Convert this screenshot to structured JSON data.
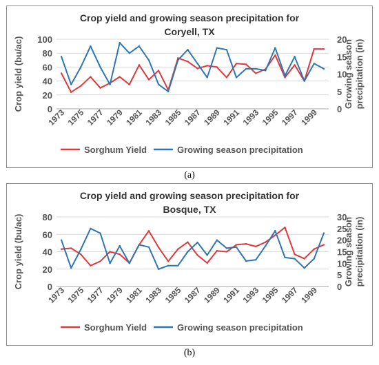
{
  "captions": [
    "(a)",
    "(b)"
  ],
  "chart_data": [
    {
      "type": "line",
      "title_lines": [
        "Crop yield and growing season precipitation for",
        "Coryell, TX"
      ],
      "ylabel": "Crop yield (bu/ac)",
      "y2label_lines": [
        "Growing season",
        "precipitation (in)"
      ],
      "ylim": [
        0,
        100
      ],
      "yticks": [
        0,
        20,
        40,
        60,
        80,
        100
      ],
      "y2lim": [
        0,
        20
      ],
      "y2ticks": [
        0,
        5,
        10,
        15,
        20
      ],
      "x": [
        1973,
        1974,
        1975,
        1976,
        1977,
        1978,
        1979,
        1980,
        1981,
        1982,
        1983,
        1984,
        1985,
        1986,
        1987,
        1988,
        1989,
        1990,
        1991,
        1992,
        1993,
        1994,
        1995,
        1996,
        1997,
        1998,
        1999,
        2000
      ],
      "xtick_labels": [
        "1973",
        "1975",
        "1977",
        "1979",
        "1981",
        "1983",
        "1985",
        "1987",
        "1989",
        "1991",
        "1993",
        "1995",
        "1997",
        "1999"
      ],
      "grid": true,
      "legend_position": "bottom",
      "series": [
        {
          "name": "Sorghum Yield",
          "axis": "left",
          "color": "#e0383b",
          "values": [
            51,
            24,
            33,
            46,
            30,
            37,
            46,
            35,
            63,
            42,
            55,
            27,
            73,
            68,
            58,
            62,
            60,
            45,
            65,
            64,
            51,
            57,
            77,
            45,
            63,
            40,
            86,
            86
          ]
        },
        {
          "name": "Growing season precipitation",
          "axis": "right",
          "color": "#2e75b6",
          "values": [
            15,
            7,
            12,
            18,
            12,
            7,
            19,
            16,
            18,
            14,
            7,
            5,
            14,
            17,
            13,
            9,
            17.5,
            17,
            9,
            11.5,
            11.5,
            11,
            17.5,
            9.5,
            15,
            8,
            13,
            11.5
          ]
        }
      ]
    },
    {
      "type": "line",
      "title_lines": [
        "Crop yield and growing season precipitation for",
        "Bosque, TX"
      ],
      "ylabel": "Crop yield (bu/ac)",
      "y2label_lines": [
        "Growing season",
        "precipitation (in)"
      ],
      "ylim": [
        0,
        80
      ],
      "yticks": [
        0,
        20,
        40,
        60,
        80
      ],
      "y2lim": [
        0,
        30
      ],
      "y2ticks": [
        0,
        5,
        10,
        15,
        20,
        25,
        30
      ],
      "x": [
        1973,
        1974,
        1975,
        1976,
        1977,
        1978,
        1979,
        1980,
        1981,
        1982,
        1983,
        1984,
        1985,
        1986,
        1987,
        1988,
        1989,
        1990,
        1991,
        1992,
        1993,
        1994,
        1995,
        1996,
        1997,
        1998,
        1999,
        2000
      ],
      "xtick_labels": [
        "1973",
        "1975",
        "1977",
        "1979",
        "1981",
        "1983",
        "1985",
        "1987",
        "1989",
        "1991",
        "1993",
        "1995",
        "1997",
        "1999"
      ],
      "grid": true,
      "legend_position": "bottom",
      "series": [
        {
          "name": "Sorghum Yield",
          "axis": "left",
          "color": "#e0383b",
          "values": [
            43,
            44,
            37,
            24,
            29,
            40,
            37,
            27,
            48,
            64,
            45,
            29,
            43,
            51,
            36,
            27,
            41,
            40,
            48,
            49,
            46,
            51,
            59,
            68,
            37,
            32,
            43,
            48
          ]
        },
        {
          "name": "Growing season precipitation",
          "axis": "right",
          "color": "#2e75b6",
          "values": [
            20,
            8,
            16,
            25,
            23,
            10,
            17.5,
            10,
            18,
            17,
            7.5,
            9,
            9,
            15,
            19,
            13.5,
            20,
            16.5,
            17,
            11,
            11.5,
            17.5,
            24,
            12.5,
            12,
            8,
            12,
            23
          ]
        }
      ]
    }
  ]
}
